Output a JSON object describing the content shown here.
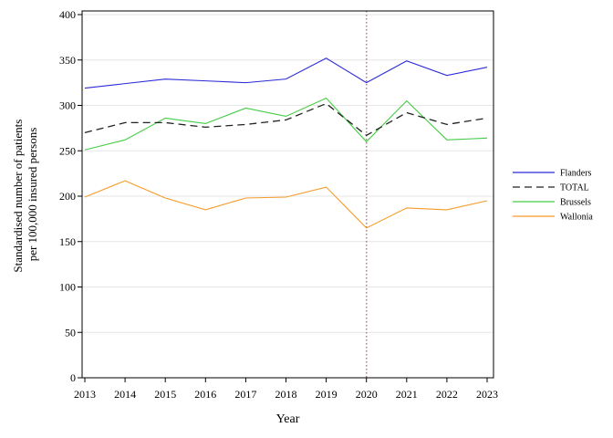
{
  "chart_data": {
    "type": "line",
    "title": "",
    "xlabel": "Year",
    "ylabel_lines": [
      "Standardised number of patients",
      "per 100,000 insured persons"
    ],
    "x": [
      2013,
      2014,
      2015,
      2016,
      2017,
      2018,
      2019,
      2020,
      2021,
      2022,
      2023
    ],
    "xlim": [
      2013,
      2023
    ],
    "ylim": [
      0,
      400
    ],
    "yticks": [
      0,
      50,
      100,
      150,
      200,
      250,
      300,
      350,
      400
    ],
    "grid": "horizontal",
    "legend_position": "right",
    "reference_line": {
      "x": 2020,
      "color": "#b07a8c",
      "style": "dotted"
    },
    "series": [
      {
        "name": "Flanders",
        "color": "#2b2bd6",
        "dash": "solid",
        "values": [
          319,
          324,
          329,
          327,
          325,
          329,
          352,
          325,
          349,
          333,
          342
        ]
      },
      {
        "name": "TOTAL",
        "color": "#222222",
        "dash": "dashed",
        "values": [
          270,
          281,
          281,
          276,
          279,
          284,
          302,
          267,
          292,
          279,
          286
        ]
      },
      {
        "name": "Brussels",
        "color": "#44cc44",
        "dash": "solid",
        "values": [
          251,
          262,
          286,
          280,
          297,
          288,
          308,
          260,
          305,
          262,
          264
        ]
      },
      {
        "name": "Wallonia",
        "color": "#f59b2a",
        "dash": "solid",
        "values": [
          199,
          217,
          198,
          185,
          198,
          199,
          210,
          165,
          187,
          185,
          195
        ]
      }
    ]
  }
}
